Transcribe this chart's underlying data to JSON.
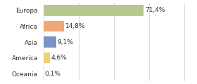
{
  "categories": [
    "Europa",
    "Africa",
    "Asia",
    "America",
    "Oceania"
  ],
  "values": [
    71.4,
    14.8,
    9.1,
    4.6,
    0.1
  ],
  "labels": [
    "71,4%",
    "14,8%",
    "9,1%",
    "4,6%",
    "0,1%"
  ],
  "colors": [
    "#b5c98e",
    "#f0a878",
    "#7b94c4",
    "#f0d070",
    "#f5c0b8"
  ],
  "background_color": "#ffffff",
  "label_fontsize": 6.5,
  "bar_height": 0.68,
  "xlim": [
    0,
    105
  ],
  "grid_ticks": [
    0,
    25,
    50,
    75,
    100
  ]
}
